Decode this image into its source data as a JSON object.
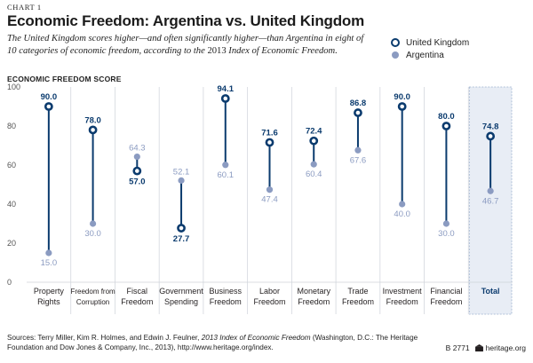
{
  "header": {
    "kicker": "CHART 1",
    "title": "Economic Freedom: Argentina vs. United Kingdom",
    "subtitle_part1": "The United Kingdom scores higher—and often significantly higher—than Argentina in eight of 10 categories of economic freedom, according to the ",
    "subtitle_year": "2013",
    "subtitle_part2": " Index of Economic Freedom."
  },
  "legend": {
    "uk": "United Kingdom",
    "ar": "Argentina"
  },
  "chart_data": {
    "type": "dumbbell",
    "title": "Economic Freedom: Argentina vs. United Kingdom",
    "ylabel": "ECONOMIC FREEDOM SCORE",
    "xlabel": "",
    "ylim": [
      0,
      100
    ],
    "yticks": [
      0,
      20,
      40,
      60,
      80,
      100
    ],
    "grid": "vertical column separators",
    "legend_position": "top-right",
    "categories": [
      [
        "Property",
        "Rights"
      ],
      [
        "Freedom from",
        "Corruption"
      ],
      [
        "Fiscal",
        "Freedom"
      ],
      [
        "Government",
        "Spending"
      ],
      [
        "Business",
        "Freedom"
      ],
      [
        "Labor",
        "Freedom"
      ],
      [
        "Monetary",
        "Freedom"
      ],
      [
        "Trade",
        "Freedom"
      ],
      [
        "Investment",
        "Freedom"
      ],
      [
        "Financial",
        "Freedom"
      ],
      [
        "Total"
      ]
    ],
    "series": [
      {
        "name": "United Kingdom",
        "color": "#0b3b6e",
        "values": [
          90.0,
          78.0,
          57.0,
          27.7,
          94.1,
          71.6,
          72.4,
          86.8,
          90.0,
          80.0,
          74.8
        ],
        "labels": [
          "90.0",
          "78.0",
          "57.0",
          "27.7",
          "94.1",
          "71.6",
          "72.4",
          "86.8",
          "90.0",
          "80.0",
          "74.8"
        ]
      },
      {
        "name": "Argentina",
        "color": "#8b9bc1",
        "values": [
          15.0,
          30.0,
          64.3,
          52.1,
          60.1,
          47.4,
          60.4,
          67.6,
          40.0,
          30.0,
          46.7
        ],
        "labels": [
          "15.0",
          "30.0",
          "64.3",
          "52.1",
          "60.1",
          "47.4",
          "60.4",
          "67.6",
          "40.0",
          "30.0",
          "46.7"
        ]
      }
    ],
    "highlight_category": "Total",
    "highlight_color": "#e8edf5"
  },
  "footer": {
    "source_prefix": "Sources: Terry Miller, Kim R. Holmes, and Edwin J. Feulner, ",
    "source_title": "2013 Index of Economic Freedom",
    "source_suffix": " (Washington, D.C.: The Heritage Foundation and Dow Jones & Company, Inc., 2013), http://www.heritage.org/index.",
    "chart_id": "B 2771",
    "site": "heritage.org"
  }
}
